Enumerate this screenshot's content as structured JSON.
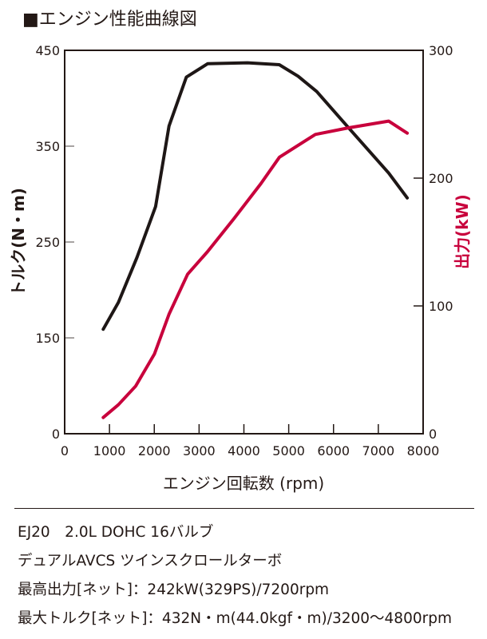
{
  "title": "■エンジン性能曲線図",
  "chart_data": {
    "type": "line",
    "xlabel": "エンジン回転数 (rpm)",
    "ylabel_left": "トルク(N・m)",
    "ylabel_right": "出力(kW)",
    "xlim": [
      0,
      8000
    ],
    "x_ticks": [
      0,
      1000,
      2000,
      3000,
      4000,
      5000,
      6000,
      7000,
      8000
    ],
    "y_left_ticks": [
      0,
      150,
      250,
      350,
      450
    ],
    "y_left_note": "axis broken below 150",
    "y_right_ticks": [
      0,
      100,
      200,
      300
    ],
    "ylim_right": [
      0,
      300
    ],
    "grid": false,
    "colors": {
      "torque": "#1e1716",
      "power": "#c8003c"
    },
    "series": [
      {
        "key": "torque",
        "axis": "left",
        "x": [
          861,
          1200,
          1615,
          2030,
          2328,
          2715,
          3190,
          4080,
          4790,
          5210,
          5625,
          6340,
          7230,
          7645
        ],
        "y": [
          159,
          187,
          234,
          287,
          371,
          422,
          436,
          437,
          435,
          423,
          407,
          369,
          322,
          296
        ]
      },
      {
        "key": "power",
        "axis": "right",
        "x": [
          861,
          1200,
          1586,
          2002,
          2328,
          2744,
          3190,
          3783,
          4377,
          4793,
          5595,
          6340,
          7230,
          7645
        ],
        "y": [
          12.7,
          22.7,
          37.3,
          62.3,
          93.5,
          124.8,
          142.5,
          168.5,
          195.6,
          216.4,
          234.2,
          239.4,
          244.6,
          235.2
        ]
      }
    ]
  },
  "specs": [
    "EJ20　2.0L DOHC 16バルブ",
    "デュアルAVCS ツインスクロールターボ",
    "最高出力[ネット]：242kW(329PS)/7200rpm",
    "最大トルク[ネット]：432N・m(44.0kgf・m)/3200〜4800rpm"
  ]
}
